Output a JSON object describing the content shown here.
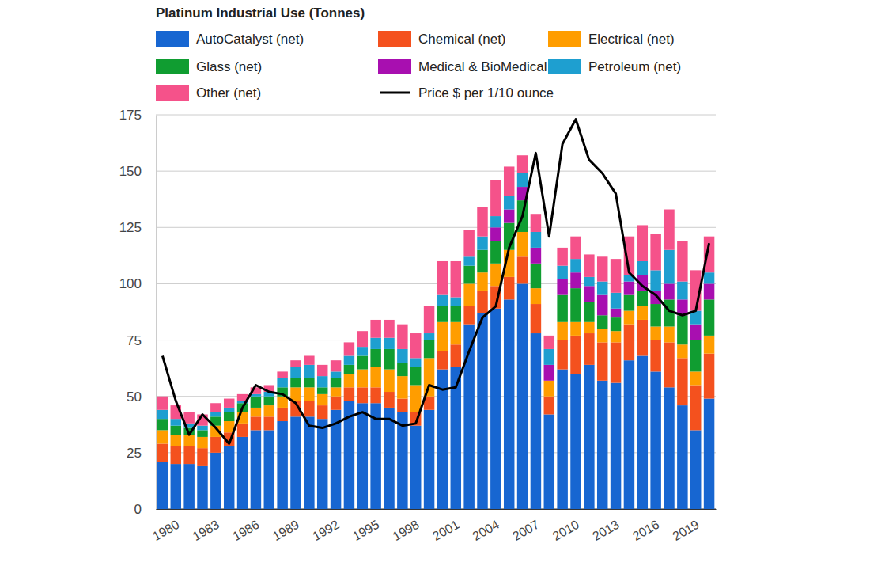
{
  "chart_data": {
    "type": "bar",
    "title": "Platinum Industrial Use (Tonnes)",
    "stacked": true,
    "grid": true,
    "legend": "top",
    "categories": [
      "1980",
      null,
      null,
      "1983",
      null,
      null,
      "1986",
      null,
      null,
      "1989",
      null,
      null,
      "1992",
      null,
      null,
      "1995",
      null,
      null,
      "1998",
      null,
      null,
      "2001",
      null,
      null,
      "2004",
      null,
      null,
      "2007",
      null,
      null,
      "2010",
      null,
      null,
      "2013",
      null,
      null,
      "2016",
      null,
      null,
      "2019",
      null,
      null
    ],
    "ylim": [
      0,
      175
    ],
    "yticks": [
      0,
      25,
      50,
      75,
      100,
      125,
      150,
      175
    ],
    "series": [
      {
        "name": "AutoCatalyst (net)",
        "color": "#1766d1",
        "type": "bar",
        "values": [
          21,
          20,
          20,
          19,
          25,
          28,
          32,
          35,
          35,
          39,
          41,
          41,
          40,
          44,
          48,
          47,
          47,
          45,
          43,
          37,
          44,
          62,
          63,
          82,
          87,
          89,
          93,
          100,
          78,
          42,
          62,
          60,
          64,
          57,
          56,
          66,
          68,
          61,
          54,
          46,
          35,
          49
        ]
      },
      {
        "name": "Chemical (net)",
        "color": "#f4511e",
        "type": "bar",
        "values": [
          8,
          8,
          8,
          8,
          7,
          6,
          6,
          6,
          6,
          6,
          7,
          7,
          6,
          6,
          6,
          7,
          7,
          7,
          6,
          6,
          6,
          8,
          10,
          8,
          10,
          10,
          10,
          12,
          13,
          8,
          13,
          17,
          14,
          17,
          18,
          16,
          16,
          14,
          20,
          21,
          20,
          20
        ]
      },
      {
        "name": "Electrical (net)",
        "color": "#ff9d00",
        "type": "bar",
        "values": [
          6,
          5,
          5,
          5,
          5,
          5,
          5,
          4,
          5,
          5,
          6,
          6,
          5,
          4,
          6,
          8,
          9,
          10,
          10,
          12,
          17,
          13,
          10,
          10,
          8,
          10,
          12,
          11,
          7,
          7,
          8,
          6,
          5,
          6,
          5,
          6,
          6,
          6,
          7,
          6,
          6,
          8
        ]
      },
      {
        "name": "Glass (net)",
        "color": "#109d31",
        "type": "bar",
        "values": [
          5,
          4,
          3,
          3,
          4,
          4,
          4,
          5,
          4,
          4,
          4,
          4,
          3,
          4,
          4,
          6,
          8,
          9,
          6,
          8,
          8,
          7,
          7,
          8,
          10,
          10,
          12,
          14,
          11,
          0,
          12,
          15,
          9,
          6,
          6,
          7,
          7,
          10,
          12,
          13,
          14,
          16
        ]
      },
      {
        "name": "Medical & BioMedical (…",
        "color": "#a80fb0",
        "type": "bar",
        "values": [
          0,
          0,
          0,
          0,
          0,
          0,
          0,
          0,
          0,
          0,
          0,
          0,
          0,
          0,
          0,
          0,
          0,
          0,
          0,
          0,
          0,
          0,
          0,
          0,
          0,
          6,
          6,
          6,
          7,
          7,
          7,
          7,
          7,
          9,
          4,
          6,
          7,
          6,
          7,
          7,
          7,
          7
        ]
      },
      {
        "name": "Petroleum (net)",
        "color": "#1e9fd0",
        "type": "bar",
        "values": [
          4,
          3,
          2,
          2,
          2,
          2,
          1,
          1,
          2,
          4,
          5,
          6,
          5,
          3,
          4,
          4,
          5,
          5,
          6,
          4,
          3,
          5,
          4,
          4,
          6,
          5,
          6,
          6,
          7,
          7,
          6,
          6,
          4,
          6,
          7,
          3,
          6,
          9,
          15,
          8,
          6,
          5
        ]
      },
      {
        "name": "Other (net)",
        "color": "#f5528a",
        "type": "bar",
        "values": [
          6,
          6,
          5,
          5,
          4,
          4,
          3,
          3,
          3,
          3,
          3,
          4,
          5,
          5,
          6,
          7,
          8,
          8,
          11,
          11,
          12,
          15,
          16,
          12,
          13,
          16,
          13,
          8,
          8,
          6,
          8,
          10,
          10,
          11,
          15,
          17,
          16,
          16,
          18,
          18,
          18,
          16
        ]
      },
      {
        "name": "Price $ per 1/10 ounce",
        "color": "#000000",
        "type": "line",
        "values": [
          68,
          48,
          33,
          42,
          36,
          29,
          45,
          55,
          52,
          51,
          47,
          37,
          36,
          38,
          41,
          43,
          40,
          40,
          37,
          38,
          55,
          53,
          54,
          70,
          85,
          90,
          116,
          130,
          158,
          121,
          162,
          173,
          155,
          149,
          140,
          105,
          99,
          95,
          88,
          86,
          88,
          118
        ]
      }
    ]
  }
}
